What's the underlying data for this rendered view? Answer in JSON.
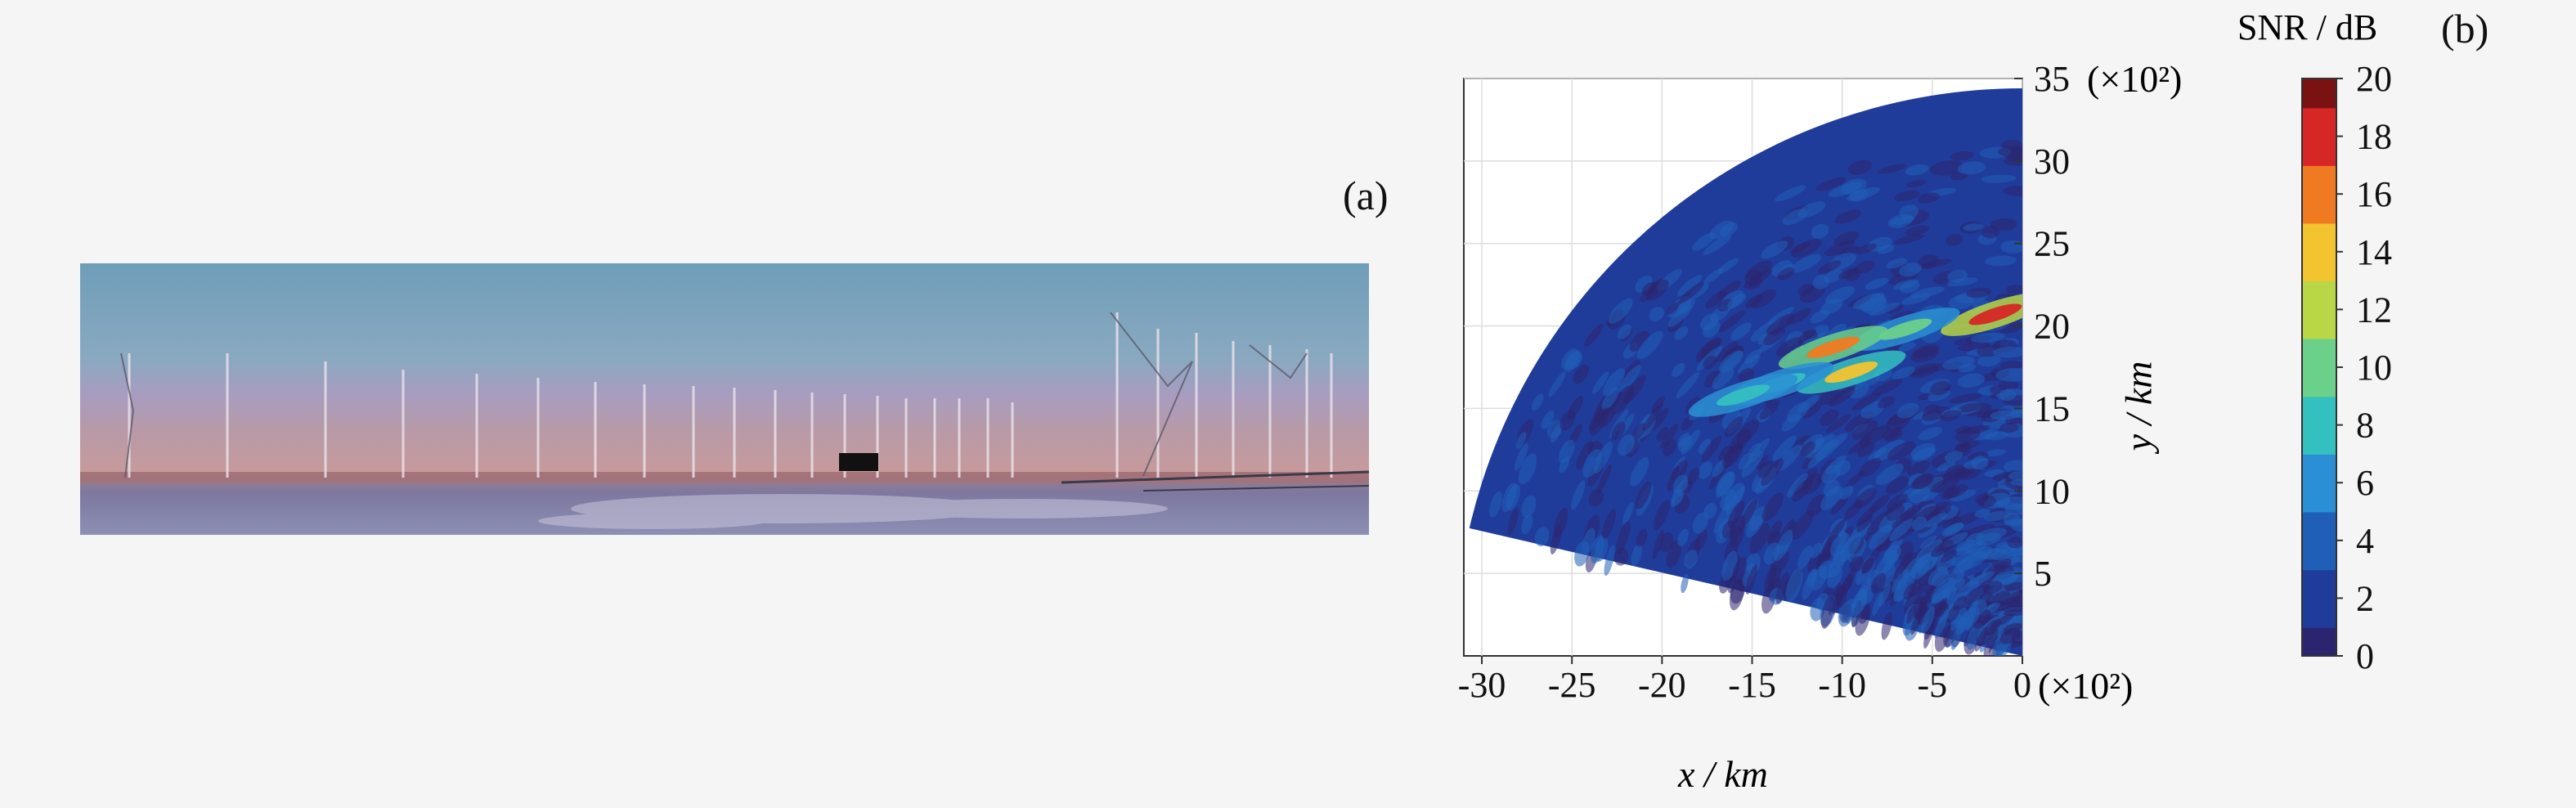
{
  "panels": {
    "a_label": "(a)",
    "b_label": "(b)"
  },
  "photo": {
    "description_icon": "radar-antenna-array-photo"
  },
  "chart_data": {
    "type": "heatmap",
    "xlabel": "x / km",
    "ylabel": "y / km",
    "x_scale_label": "(×10²)",
    "y_scale_label": "(×10²)",
    "xlim": [
      -31,
      0
    ],
    "ylim": [
      0,
      35
    ],
    "x_ticks": [
      -30,
      -25,
      -20,
      -15,
      -10,
      -5,
      0
    ],
    "y_ticks": [
      5,
      10,
      15,
      20,
      25,
      30,
      35
    ],
    "colorbar": {
      "label": "SNR / dB",
      "min": 0,
      "max": 20,
      "ticks": [
        0,
        2,
        4,
        6,
        8,
        10,
        12,
        14,
        16,
        18,
        20
      ],
      "colors": [
        "#2b2570",
        "#203c9a",
        "#1f5fb8",
        "#2a8fd4",
        "#35c0c0",
        "#6ad08a",
        "#b8d646",
        "#f2c430",
        "#f07a22",
        "#d62626",
        "#7a1212"
      ]
    },
    "sector": {
      "origin": [
        0,
        0
      ],
      "radius": 31.5,
      "angle_start_deg": 90,
      "angle_end_deg": 167
    },
    "hotspots": [
      {
        "x": -1.5,
        "y": 20.7,
        "snr": 18
      },
      {
        "x": -6.5,
        "y": 19.8,
        "snr": 10
      },
      {
        "x": -10.5,
        "y": 18.7,
        "snr": 16
      },
      {
        "x": -9.5,
        "y": 17.2,
        "snr": 14
      },
      {
        "x": -13.5,
        "y": 16.5,
        "snr": 8
      },
      {
        "x": -15.5,
        "y": 15.8,
        "snr": 7
      }
    ]
  }
}
